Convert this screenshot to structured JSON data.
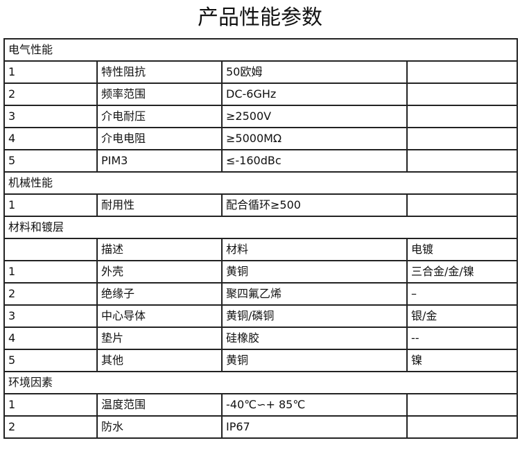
{
  "title": "产品性能参数",
  "sections": [
    {
      "heading": "电气性能",
      "rows": [
        [
          "1",
          "特性阻抗",
          "50欧姆",
          ""
        ],
        [
          "2",
          "频率范围",
          "DC-6GHz",
          ""
        ],
        [
          "3",
          "介电耐压",
          "≥2500V",
          ""
        ],
        [
          "4",
          "介电电阻",
          "≥5000MΩ",
          ""
        ],
        [
          "5",
          "PIM3",
          "≤-160dBc",
          ""
        ]
      ]
    },
    {
      "heading": "机械性能",
      "rows": [
        [
          "1",
          "耐用性",
          "配合循环≥500",
          ""
        ]
      ]
    },
    {
      "heading": "材料和镀层",
      "rows": [
        [
          "",
          "描述",
          "材料",
          "电镀"
        ],
        [
          "1",
          "外壳",
          "黄铜",
          "三合金/金/镍"
        ],
        [
          "2",
          "绝缘子",
          "聚四氟乙烯",
          "–"
        ],
        [
          "3",
          "中心导体",
          "黄铜/磷铜",
          "银/金"
        ],
        [
          "4",
          "垫片",
          "硅橡胶",
          "--"
        ],
        [
          "5",
          "其他",
          "黄铜",
          "镍"
        ]
      ]
    },
    {
      "heading": "环境因素",
      "rows": [
        [
          "1",
          "温度范围",
          "-40℃∽+ 85℃",
          ""
        ],
        [
          "2",
          "防水",
          "IP67",
          ""
        ]
      ]
    }
  ]
}
